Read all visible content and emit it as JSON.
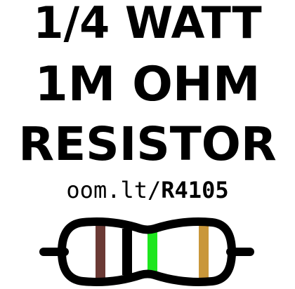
{
  "label": {
    "line1": "1/4 WATT",
    "line2": "1M OHM",
    "line3": "RESISTOR",
    "url_prefix": "oom.lt/",
    "url_code": "R4105"
  },
  "resistor": {
    "bands": [
      {
        "name": "band-1",
        "color": "#6b3a35"
      },
      {
        "name": "band-2",
        "color": "#000000"
      },
      {
        "name": "band-3",
        "color": "#1ee61e"
      },
      {
        "name": "band-4",
        "color": "#c9973a"
      }
    ],
    "outline_color": "#000000"
  }
}
